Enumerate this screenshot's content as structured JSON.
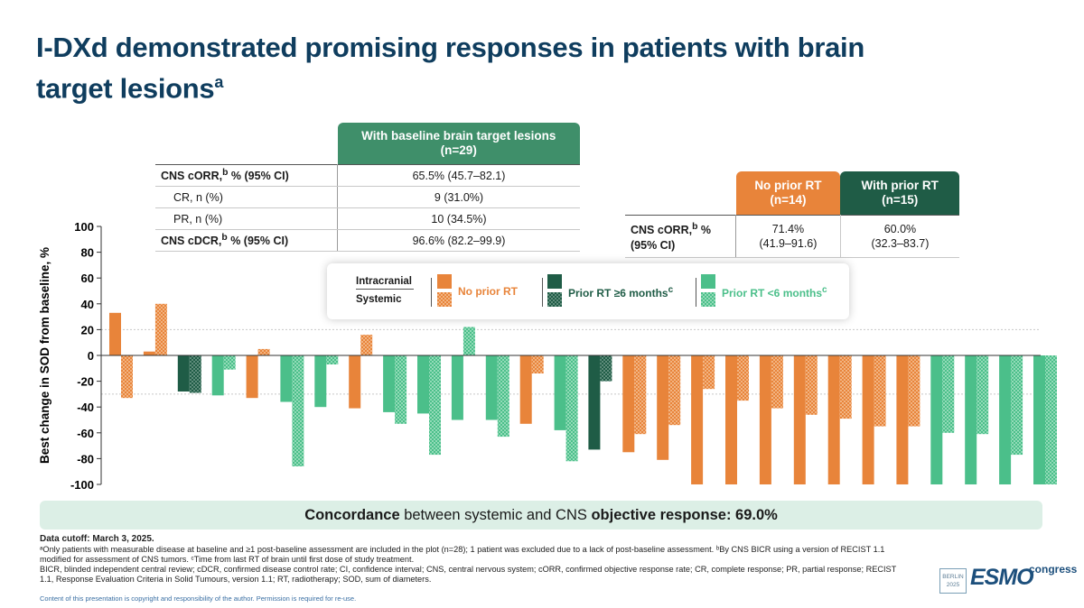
{
  "title": {
    "line1": "I-DXd demonstrated promising responses in patients with brain",
    "line2": "target lesions",
    "sup": "a"
  },
  "table_main": {
    "header_line1": "With baseline brain target lesions",
    "header_line2": "(n=29)",
    "rows": [
      {
        "label": "CNS cORR,",
        "label_sup": "b",
        "label_tail": " % (95% CI)",
        "value": "65.5% (45.7–82.1)"
      },
      {
        "label": "CR, n (%)",
        "value": "9 (31.0%)"
      },
      {
        "label": "PR, n (%)",
        "value": "10 (34.5%)"
      },
      {
        "label": "CNS cDCR,",
        "label_sup": "b",
        "label_tail": " % (95% CI)",
        "value": "96.6% (82.2–99.9)"
      }
    ]
  },
  "table_rt": {
    "col1_line1": "No prior RT",
    "col1_line2": "(n=14)",
    "col2_line1": "With prior RT",
    "col2_line2": "(n=15)",
    "row_label1": "CNS cORR,",
    "row_label_sup": "b",
    "row_label_tail": " %",
    "row_label2": "(95% CI)",
    "v1_line1": "71.4%",
    "v1_line2": "(41.9–91.6)",
    "v2_line1": "60.0%",
    "v2_line2": "(32.3–83.7)"
  },
  "legend": {
    "intracranial": "Intracranial",
    "systemic": "Systemic",
    "no_prior": "No prior RT",
    "prior_ge6": "Prior RT ≥6 months",
    "prior_ge6_sup": "c",
    "prior_lt6": "Prior RT <6 months",
    "prior_lt6_sup": "c"
  },
  "colors": {
    "no_prior": "#e8843a",
    "prior_ge6": "#1f5c46",
    "prior_lt6": "#4bbf8a",
    "title": "#0f3d5e"
  },
  "chart_data": {
    "type": "bar",
    "ylabel": "Best change in SOD from baseline, %",
    "ylim": [
      -100,
      100
    ],
    "yticks": [
      100,
      80,
      60,
      40,
      20,
      0,
      -20,
      -40,
      -60,
      -80,
      -100
    ],
    "reference_lines": [
      20,
      -30
    ],
    "series_names": [
      "Intracranial",
      "Systemic"
    ],
    "patients": [
      {
        "group": "no_prior",
        "intracranial": 33,
        "systemic": -33
      },
      {
        "group": "no_prior",
        "intracranial": 3,
        "systemic": 40
      },
      {
        "group": "prior_ge6",
        "intracranial": -28,
        "systemic": -29
      },
      {
        "group": "prior_lt6",
        "intracranial": -31,
        "systemic": -11
      },
      {
        "group": "no_prior",
        "intracranial": -33,
        "systemic": 5
      },
      {
        "group": "prior_lt6",
        "intracranial": -36,
        "systemic": -86
      },
      {
        "group": "prior_lt6",
        "intracranial": -40,
        "systemic": -7
      },
      {
        "group": "no_prior",
        "intracranial": -41,
        "systemic": 16
      },
      {
        "group": "prior_lt6",
        "intracranial": -44,
        "systemic": -53
      },
      {
        "group": "prior_lt6",
        "intracranial": -45,
        "systemic": -77
      },
      {
        "group": "prior_lt6",
        "intracranial": -50,
        "systemic": 22
      },
      {
        "group": "prior_lt6",
        "intracranial": -50,
        "systemic": -63
      },
      {
        "group": "no_prior",
        "intracranial": -53,
        "systemic": -14
      },
      {
        "group": "prior_lt6",
        "intracranial": -58,
        "systemic": -82
      },
      {
        "group": "prior_ge6",
        "intracranial": -73,
        "systemic": -20
      },
      {
        "group": "no_prior",
        "intracranial": -75,
        "systemic": -61
      },
      {
        "group": "no_prior",
        "intracranial": -81,
        "systemic": -54
      },
      {
        "group": "no_prior",
        "intracranial": -100,
        "systemic": -26
      },
      {
        "group": "no_prior",
        "intracranial": -100,
        "systemic": -35
      },
      {
        "group": "no_prior",
        "intracranial": -100,
        "systemic": -41
      },
      {
        "group": "no_prior",
        "intracranial": -100,
        "systemic": -46
      },
      {
        "group": "no_prior",
        "intracranial": -100,
        "systemic": -49
      },
      {
        "group": "no_prior",
        "intracranial": -100,
        "systemic": -55
      },
      {
        "group": "no_prior",
        "intracranial": -100,
        "systemic": -55
      },
      {
        "group": "prior_lt6",
        "intracranial": -100,
        "systemic": -60
      },
      {
        "group": "prior_lt6",
        "intracranial": -100,
        "systemic": -61
      },
      {
        "group": "prior_lt6",
        "intracranial": -100,
        "systemic": -77
      },
      {
        "group": "prior_lt6",
        "intracranial": -100,
        "systemic": -100
      }
    ]
  },
  "concordance": {
    "bold1": "Concordance",
    "mid": " between systemic and CNS ",
    "bold2": "objective response: 69.0%"
  },
  "footnotes": {
    "cutoff": "Data cutoff: March 3, 2025.",
    "a": "ᵃOnly patients with measurable disease at baseline and ≥1 post-baseline assessment are included in the plot (n=28); 1 patient was excluded due to a lack of post-baseline assessment. ᵇBy CNS BICR using a version of RECIST 1.1 modified for assessment of CNS tumors. ᶜTime from last RT of brain until first dose of study treatment.",
    "abbrev": "BICR, blinded independent central review; cDCR, confirmed disease control rate; CI, confidence interval; CNS, central nervous system; cORR, confirmed objective response rate; CR, complete response; PR, partial response; RECIST 1.1, Response Evaluation Criteria in Solid Tumours, version 1.1; RT, radiotherapy; SOD, sum of diameters.",
    "copyright": "Content of this presentation is copyright and responsibility of the author. Permission is required for re-use."
  },
  "logo": {
    "city": "BERLIN",
    "year": "2025",
    "brand": "ESMO",
    "suffix": "congress"
  }
}
